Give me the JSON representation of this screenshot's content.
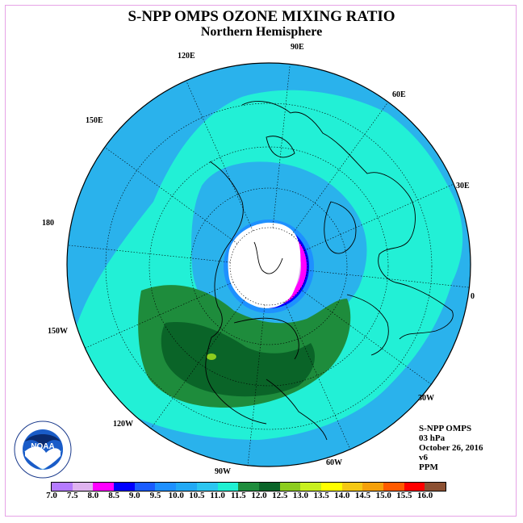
{
  "title": "S-NPP OMPS OZONE MIXING RATIO",
  "subtitle": "Northern Hemisphere",
  "longitude_labels": [
    "90E",
    "60E",
    "30E",
    "0",
    "30W",
    "60W",
    "90W",
    "120W",
    "150W",
    "180",
    "150E",
    "120E"
  ],
  "info": {
    "instrument": "S-NPP OMPS",
    "level": "03 hPa",
    "date": "October 26, 2016",
    "version": "v6",
    "units": "PPM"
  },
  "logo_text": "NOAA",
  "colorbar": {
    "ticks": [
      "7.0",
      "7.5",
      "8.0",
      "8.5",
      "9.0",
      "9.5",
      "10.0",
      "10.5",
      "11.0",
      "11.5",
      "12.0",
      "12.5",
      "13.0",
      "13.5",
      "14.0",
      "14.5",
      "15.0",
      "15.5",
      "16.0"
    ],
    "colors": [
      "#b57bff",
      "#dfb3ef",
      "#ff00ff",
      "#0000ff",
      "#1a5cff",
      "#1e90ff",
      "#22a9f5",
      "#2cc6f0",
      "#1ef0d2",
      "#1e8c3c",
      "#0a6428",
      "#8ccc1e",
      "#c8ef1e",
      "#ffff00",
      "#f5c814",
      "#f5a00a",
      "#ff5a00",
      "#ff0000",
      "#8c5032"
    ]
  },
  "colors": {
    "ocean_bg": "#2ab2ec",
    "band_aqua": "#22f0d6",
    "band_green": "#1e8c3c",
    "band_dark_green": "#0a6428",
    "polar_no_data": "#ffffff"
  }
}
